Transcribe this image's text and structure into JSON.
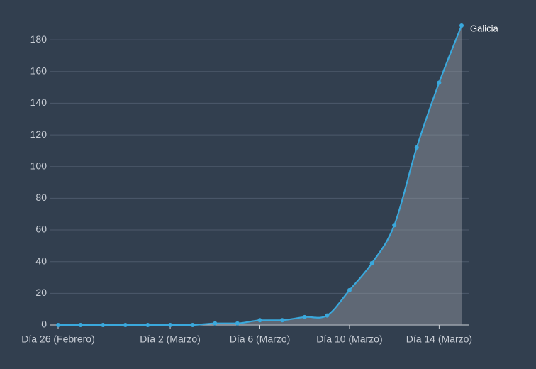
{
  "chart_data": {
    "type": "area",
    "categories": [
      "Día 26 (Febrero)",
      null,
      null,
      null,
      null,
      "Día 2 (Marzo)",
      null,
      null,
      null,
      "Día 6 (Marzo)",
      null,
      null,
      null,
      "Día 10 (Marzo)",
      null,
      null,
      null,
      "Día 14 (Marzo)",
      null
    ],
    "series": [
      {
        "name": "Galicia",
        "color": "#3aa8dc",
        "values": [
          0,
          0,
          0,
          0,
          0,
          0,
          0,
          1,
          1,
          3,
          3,
          5,
          6,
          22,
          39,
          63,
          112,
          153,
          189
        ]
      }
    ],
    "ylim": [
      0,
      189
    ],
    "yticks": [
      0,
      20,
      40,
      60,
      80,
      100,
      120,
      140,
      160,
      180
    ],
    "grid": true
  }
}
